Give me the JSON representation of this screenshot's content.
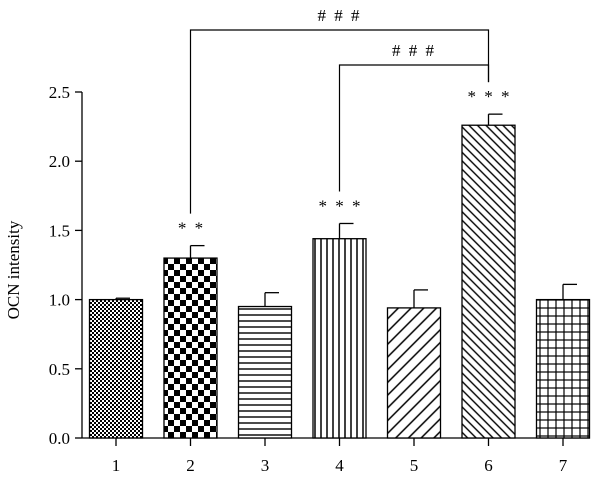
{
  "chart_data": {
    "type": "bar",
    "ylabel": "OCN intensity",
    "xlabel": "",
    "ylim": [
      0,
      2.5
    ],
    "yticks": [
      "0.0",
      "0.5",
      "1.0",
      "1.5",
      "2.0",
      "2.5"
    ],
    "categories": [
      "1",
      "2",
      "3",
      "4",
      "5",
      "6",
      "7"
    ],
    "values": [
      1.0,
      1.3,
      0.95,
      1.44,
      0.94,
      2.26,
      1.0
    ],
    "errors": [
      0.01,
      0.09,
      0.1,
      0.11,
      0.13,
      0.08,
      0.11
    ],
    "patterns": [
      "fine-grid",
      "checkerboard",
      "horizontal-lines",
      "vertical-lines",
      "diagonal-lines",
      "dense-diagonal-lines",
      "grid-lines"
    ],
    "bar_annotations": [
      "",
      "* *",
      "",
      "* * *",
      "",
      "* * *",
      ""
    ],
    "comparisons": [
      {
        "from": "2",
        "to": "6",
        "label": "# # #"
      },
      {
        "from": "4",
        "to": "6",
        "label": "# # #"
      }
    ]
  }
}
